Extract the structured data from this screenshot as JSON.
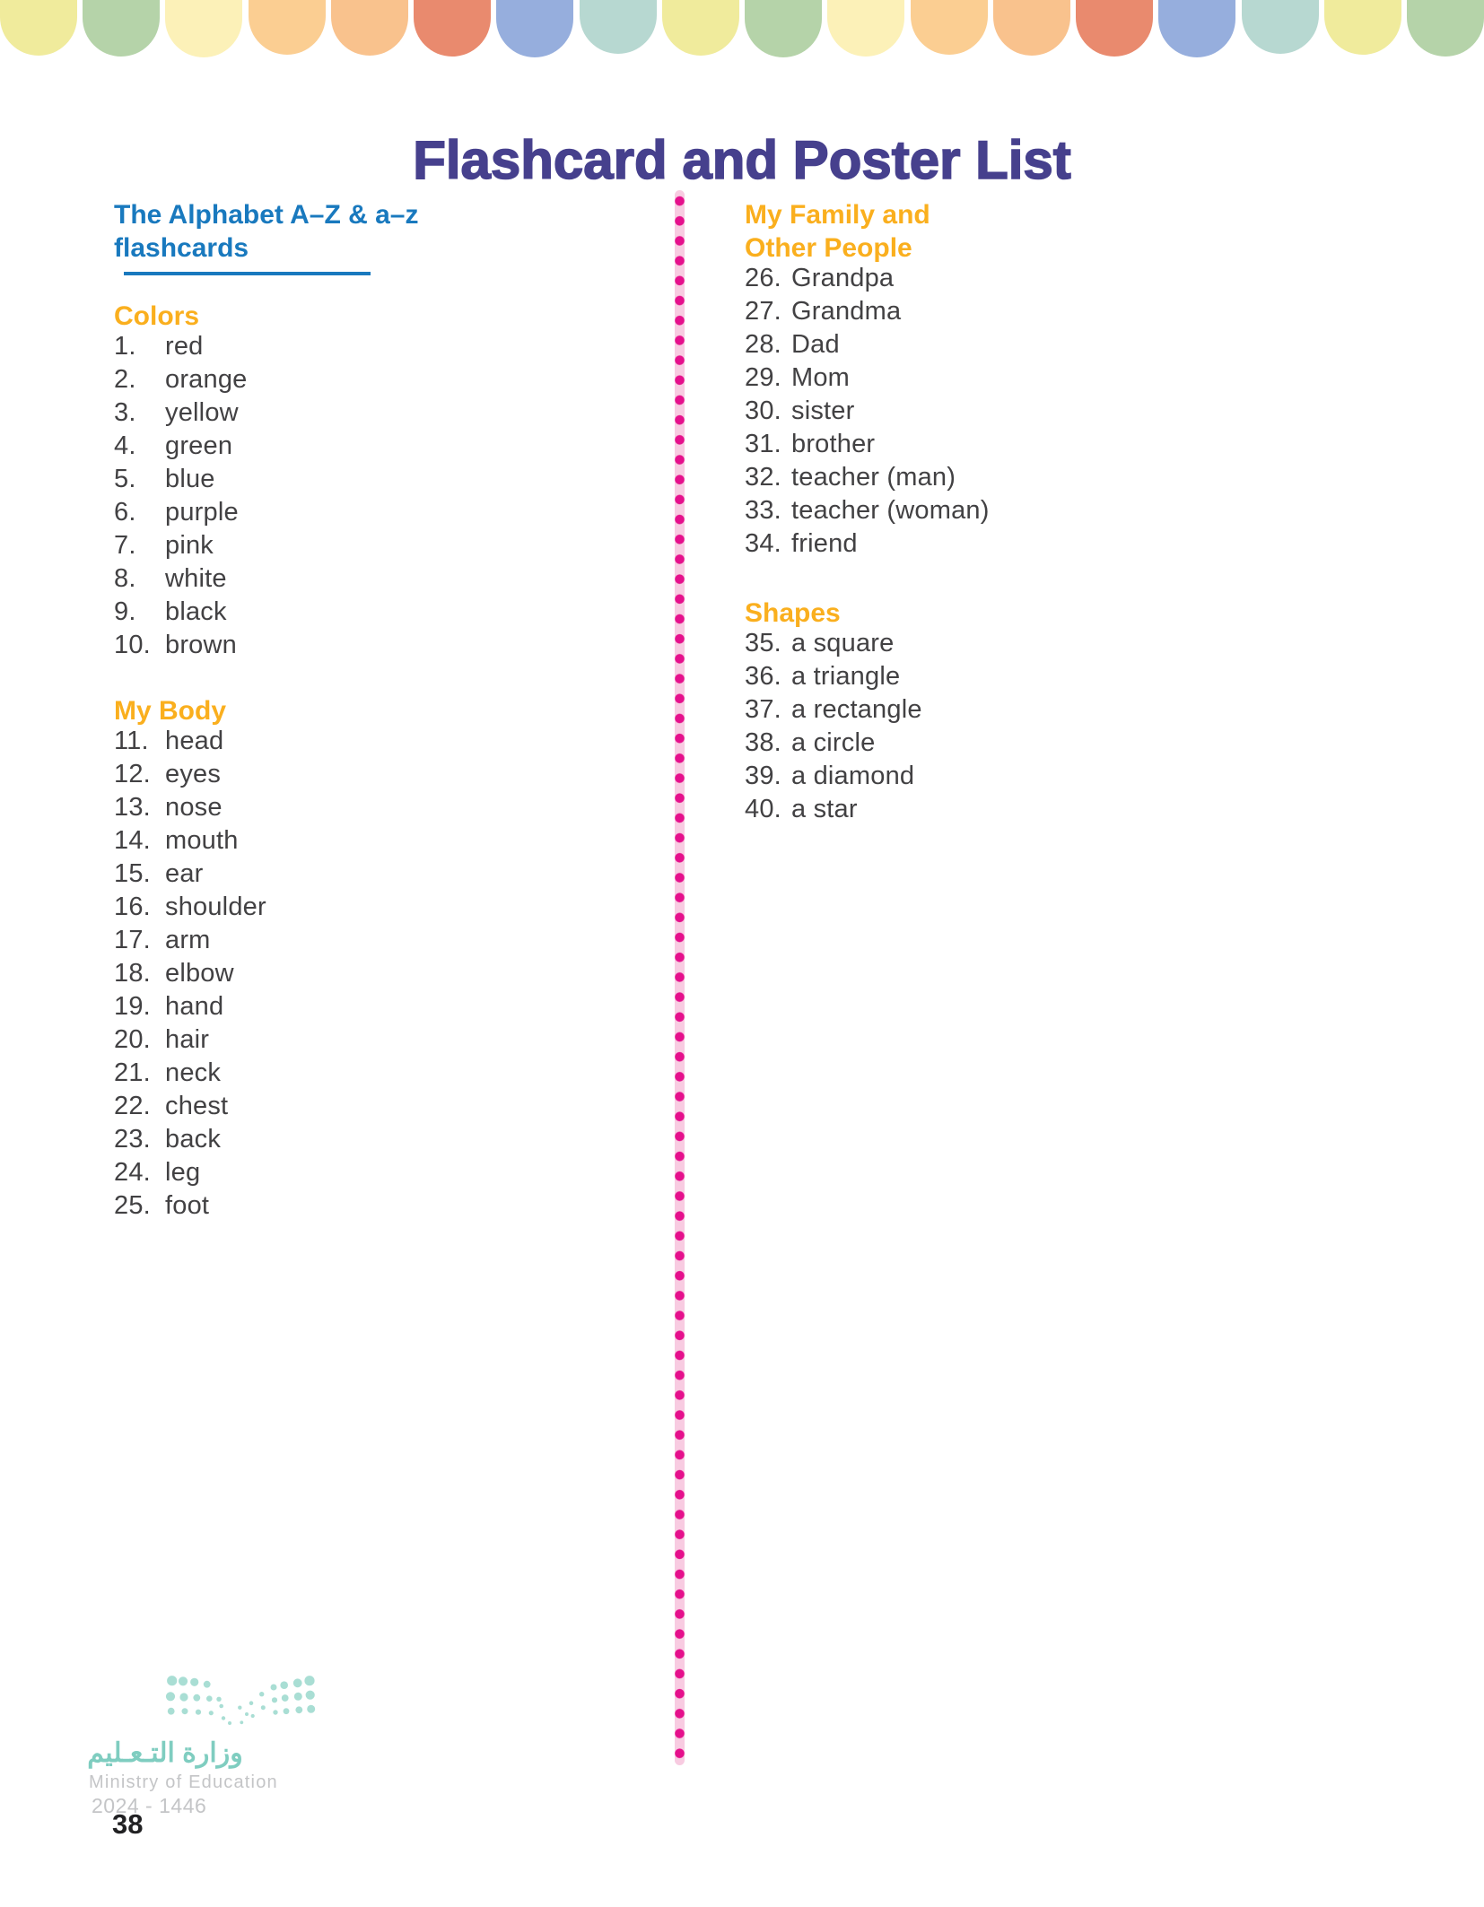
{
  "title": "Flashcard and Poster List",
  "theme": {
    "title_color": "#46408d",
    "heading_blue": "#1979be",
    "heading_orange": "#faaf1e",
    "body_text": "#424143"
  },
  "decorative_border": {
    "count": 18,
    "colors": [
      "#f0eb9c",
      "#b5d3a9",
      "#fcf1b8",
      "#fbce92",
      "#f9c28d",
      "#e98a6e",
      "#96aedd",
      "#b7d8d1"
    ]
  },
  "divider": {
    "band_color": "#f8cbe1",
    "dot_color": "#e5108c"
  },
  "left_column": {
    "intro": {
      "line1": "The Alphabet A–Z & a–z",
      "line2": "flashcards"
    },
    "sections": [
      {
        "heading": "Colors",
        "items": [
          {
            "n": "1.",
            "t": "red"
          },
          {
            "n": "2.",
            "t": "orange"
          },
          {
            "n": "3.",
            "t": "yellow"
          },
          {
            "n": "4.",
            "t": "green"
          },
          {
            "n": "5.",
            "t": "blue"
          },
          {
            "n": "6.",
            "t": "purple"
          },
          {
            "n": "7.",
            "t": "pink"
          },
          {
            "n": "8.",
            "t": "white"
          },
          {
            "n": "9.",
            "t": "black"
          },
          {
            "n": "10.",
            "t": "brown"
          }
        ]
      },
      {
        "heading": "My Body",
        "items": [
          {
            "n": "11.",
            "t": "head"
          },
          {
            "n": "12.",
            "t": "eyes"
          },
          {
            "n": "13.",
            "t": "nose"
          },
          {
            "n": "14.",
            "t": "mouth"
          },
          {
            "n": "15.",
            "t": "ear"
          },
          {
            "n": "16.",
            "t": "shoulder"
          },
          {
            "n": "17.",
            "t": "arm"
          },
          {
            "n": "18.",
            "t": "elbow"
          },
          {
            "n": "19.",
            "t": "hand"
          },
          {
            "n": "20.",
            "t": "hair"
          },
          {
            "n": "21.",
            "t": "neck"
          },
          {
            "n": "22.",
            "t": "chest"
          },
          {
            "n": "23.",
            "t": "back"
          },
          {
            "n": "24.",
            "t": "leg"
          },
          {
            "n": "25.",
            "t": "foot"
          }
        ]
      }
    ]
  },
  "right_column": {
    "sections": [
      {
        "heading_lines": [
          "My Family and",
          "Other People"
        ],
        "items": [
          {
            "n": "26.",
            "t": "Grandpa"
          },
          {
            "n": "27.",
            "t": "Grandma"
          },
          {
            "n": "28.",
            "t": "Dad"
          },
          {
            "n": "29.",
            "t": "Mom"
          },
          {
            "n": "30.",
            "t": "sister"
          },
          {
            "n": "31.",
            "t": "brother"
          },
          {
            "n": "32.",
            "t": "teacher (man)"
          },
          {
            "n": "33.",
            "t": "teacher (woman)"
          },
          {
            "n": "34.",
            "t": "friend"
          }
        ]
      },
      {
        "heading_lines": [
          "Shapes"
        ],
        "items": [
          {
            "n": "35.",
            "t": "a square"
          },
          {
            "n": "36.",
            "t": "a triangle"
          },
          {
            "n": "37.",
            "t": "a rectangle"
          },
          {
            "n": "38.",
            "t": "a circle"
          },
          {
            "n": "39.",
            "t": "a diamond"
          },
          {
            "n": "40.",
            "t": "a star"
          }
        ]
      }
    ]
  },
  "footer": {
    "logo_arabic": "وزارة التـعـليم",
    "logo_english": "Ministry of Education",
    "edition_years": "2024 - 1446",
    "page_number": "38"
  }
}
